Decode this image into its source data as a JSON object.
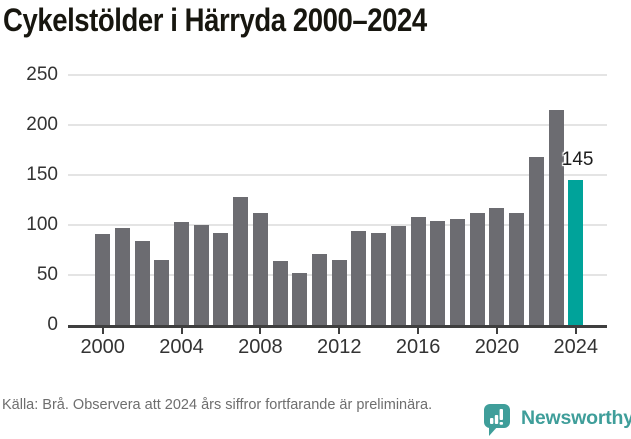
{
  "header": {
    "title": "Cykelstölder i Härryda 2000–2024"
  },
  "chart_data": {
    "type": "bar",
    "title": "Cykelstölder i Härryda 2000–2024",
    "categories": [
      2000,
      2001,
      2002,
      2003,
      2004,
      2005,
      2006,
      2007,
      2008,
      2009,
      2010,
      2011,
      2012,
      2013,
      2014,
      2015,
      2016,
      2017,
      2018,
      2019,
      2020,
      2021,
      2022,
      2023,
      2024
    ],
    "values": [
      91,
      97,
      84,
      65,
      103,
      100,
      92,
      128,
      112,
      64,
      52,
      71,
      65,
      94,
      92,
      99,
      108,
      104,
      106,
      112,
      117,
      112,
      168,
      215,
      145
    ],
    "highlight_year": 2024,
    "annotation": {
      "label": "145",
      "year": 2024,
      "value": 145
    },
    "ylim": [
      0,
      250
    ],
    "yticks": [
      0,
      50,
      100,
      150,
      200,
      250
    ],
    "xticks": [
      2000,
      2004,
      2008,
      2012,
      2016,
      2020,
      2024
    ],
    "grid": true,
    "legend_position": "none",
    "colors": {
      "bar": "#6c6c71",
      "highlight": "#00a39a",
      "axis": "#3f3f3f",
      "grid": "#e4e4e4",
      "tick_text": "#333333",
      "title_text": "#17160f"
    }
  },
  "footer": {
    "source_text": "Källa: Brå. Observera att 2024 års siffror fortfarande är preliminära.",
    "brand_name": "Newsworthy",
    "brand_color": "#3f9e9a"
  },
  "icons": {
    "brand_logo": "newsworthy-speech-bubble-bar-chart"
  }
}
